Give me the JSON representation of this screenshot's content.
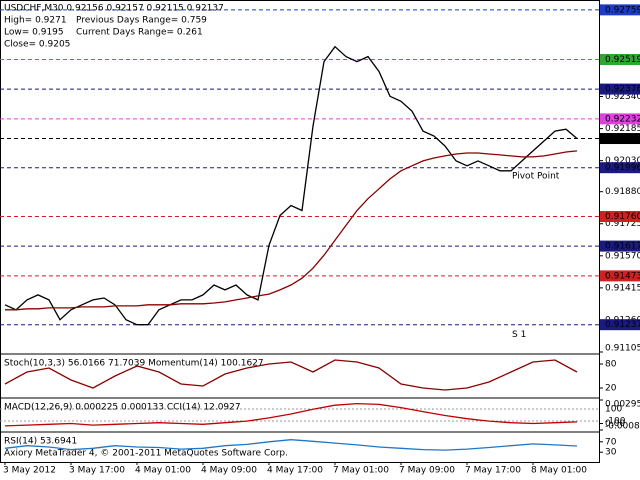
{
  "chart_data": [
    {
      "type": "line",
      "info_left": [
        "USDCHF,M30  0.92156 0.92157 0.92115 0.92137",
        "High= 0.9271",
        "Low= 0.9195",
        "Close= 0.9205"
      ],
      "info_right": [
        "Previous Days Range= 0.759",
        "Current Days Range= 0.261"
      ],
      "categories": [
        "3 May 2012",
        null,
        null,
        null,
        null,
        null,
        "3 May 17:00",
        null,
        null,
        null,
        null,
        null,
        "4 May 01:00",
        null,
        null,
        null,
        null,
        null,
        "4 May 09:00",
        null,
        null,
        null,
        null,
        null,
        "4 May 17:00",
        null,
        null,
        null,
        null,
        null,
        "7 May 01:00",
        null,
        null,
        null,
        null,
        null,
        "7 May 09:00",
        null,
        null,
        null,
        null,
        null,
        "7 May 17:00",
        null,
        null,
        null,
        null,
        null,
        "8 May 01:00",
        null,
        null,
        null,
        null
      ],
      "series": [
        {
          "color": "#000000",
          "values": [
            0.91333,
            0.91309,
            0.91357,
            0.91381,
            0.91357,
            0.91261,
            0.91309,
            0.91333,
            0.91357,
            0.91366,
            0.91333,
            0.91261,
            0.91237,
            0.91237,
            0.91309,
            0.91333,
            0.91357,
            0.91357,
            0.91381,
            0.91429,
            0.91405,
            0.91429,
            0.91381,
            0.91357,
            0.91621,
            0.91765,
            0.91813,
            0.91789,
            0.92197,
            0.92509,
            0.92581,
            0.92533,
            0.92509,
            0.92533,
            0.92461,
            0.92341,
            0.92317,
            0.92269,
            0.92173,
            0.92149,
            0.92101,
            0.92029,
            0.92005,
            0.92029,
            0.92005,
            0.91981,
            0.91981,
            0.92029,
            0.92077,
            0.92125,
            0.92173,
            0.92182,
            0.92137
          ]
        },
        {
          "color": "#8b0000",
          "values": [
            0.91309,
            0.91309,
            0.91314,
            0.91314,
            0.91318,
            0.91318,
            0.91318,
            0.91323,
            0.91323,
            0.91323,
            0.91328,
            0.91328,
            0.91328,
            0.91333,
            0.91333,
            0.91333,
            0.91338,
            0.91338,
            0.91338,
            0.91342,
            0.91347,
            0.91357,
            0.91366,
            0.91376,
            0.91385,
            0.91405,
            0.91429,
            0.91462,
            0.9151,
            0.91573,
            0.91645,
            0.91717,
            0.91789,
            0.91846,
            0.91894,
            0.91942,
            0.91981,
            0.92005,
            0.92029,
            0.92043,
            0.92053,
            0.92062,
            0.92067,
            0.92067,
            0.92062,
            0.92058,
            0.92053,
            0.92048,
            0.92048,
            0.92053,
            0.92062,
            0.92072,
            0.92077
          ]
        }
      ],
      "ylim": [
        0.91105,
        0.92797
      ],
      "yticks": [
        {
          "value": 0.9234,
          "label": "0.92340"
        },
        {
          "value": 0.92185,
          "label": "0.92185"
        },
        {
          "value": 0.9203,
          "label": "0.92030"
        },
        {
          "value": 0.9188,
          "label": "0.91880"
        },
        {
          "value": 0.91725,
          "label": "0.91725"
        },
        {
          "value": 0.9157,
          "label": "0.91570"
        },
        {
          "value": 0.91415,
          "label": "0.91415"
        },
        {
          "value": 0.9126,
          "label": "0.91260"
        },
        {
          "value": 0.91105,
          "label": "0.91105"
        }
      ],
      "levels": [
        {
          "value": 0.92759,
          "label": "0.92759",
          "color": "#1a3cc8"
        },
        {
          "value": 0.92519,
          "label": "0.92519",
          "color": "#2ea82e"
        },
        {
          "value": 0.92376,
          "label": "0.92376",
          "color": "#1a1a80"
        },
        {
          "value": 0.92232,
          "label": "0.92232",
          "color": "#e040e0"
        },
        {
          "value": 0.92137,
          "label": "0.92137",
          "color": "#000000"
        },
        {
          "value": 0.91996,
          "label": "0.91996",
          "color": "#1a1a80"
        },
        {
          "value": 0.9176,
          "label": "0.91760",
          "color": "#d02020"
        },
        {
          "value": 0.91617,
          "label": "0.91617",
          "color": "#1a1a80"
        },
        {
          "value": 0.91473,
          "label": "0.91473",
          "color": "#d02020"
        },
        {
          "value": 0.91237,
          "label": "0.91237",
          "color": "#1a1a80"
        }
      ],
      "annotations": [
        {
          "text": "Pivot Point",
          "value": 0.91957,
          "color": "#e8a020"
        },
        {
          "text": "S 1",
          "value": 0.9119,
          "color": "#d02020"
        }
      ],
      "footer": "Axiory MetaTrader 4, © 2001-2011 MetaQuotes Software Corp."
    },
    {
      "type": "line",
      "title": "Stoch(10,3,3) 56.0166 71.7039  Momentum(14) 100.1627",
      "series": [
        {
          "color": "#8b0000",
          "values": [
            30,
            60,
            70,
            40,
            20,
            50,
            75,
            60,
            30,
            25,
            55,
            70,
            80,
            85,
            60,
            90,
            85,
            70,
            30,
            20,
            15,
            20,
            35,
            60,
            85,
            90,
            60
          ]
        }
      ],
      "ylim": [
        0,
        100
      ],
      "yticks": [
        20,
        80
      ]
    },
    {
      "type": "line",
      "title": "MACD(12,26,9) 0.000225 0.000133  CCI(14) 12.0927",
      "series": [
        {
          "color": "#c00000",
          "values": [
            -0.0003,
            -0.0002,
            -0.0001,
            0,
            -0.0002,
            -0.0001,
            0,
            0.0001,
            0,
            -0.0001,
            0.0001,
            0.0003,
            0.0007,
            0.0012,
            0.0018,
            0.0023,
            0.0025,
            0.0024,
            0.002,
            0.0015,
            0.001,
            0.0006,
            0.0003,
            0.0001,
            0,
            0.0001,
            0.0002
          ]
        }
      ],
      "ylim": [
        -0.00082,
        0.002956
      ],
      "yticks": [
        {
          "value": 0.002956,
          "label": "0.002956"
        },
        {
          "value": 0,
          "label": "0.00"
        },
        {
          "value": -0.00082,
          "label": "-0.00082"
        }
      ],
      "y2lim": [
        -250,
        250
      ],
      "y2ticks": [
        100,
        -100
      ]
    },
    {
      "type": "line",
      "title": "RSI(14) 53.6941",
      "series": [
        {
          "color": "#1e78c8",
          "values": [
            45,
            55,
            50,
            40,
            45,
            55,
            50,
            48,
            42,
            45,
            55,
            60,
            70,
            78,
            72,
            65,
            58,
            50,
            45,
            40,
            38,
            42,
            48,
            55,
            62,
            58,
            54
          ]
        }
      ],
      "ylim": [
        0,
        100
      ],
      "yticks": [
        70,
        30
      ]
    }
  ]
}
